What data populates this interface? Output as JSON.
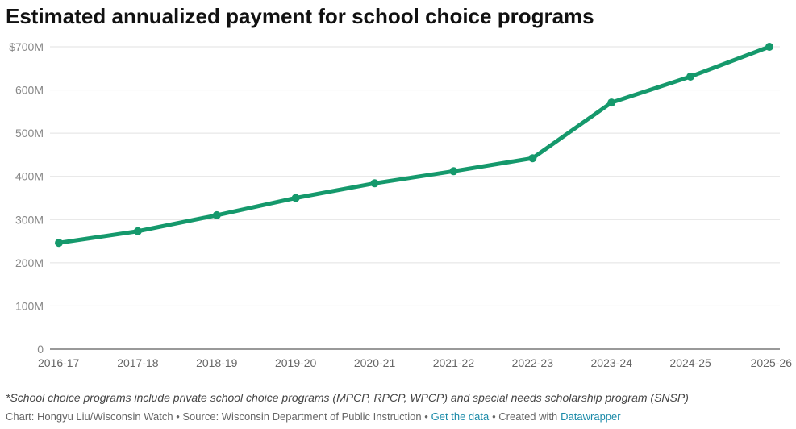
{
  "chart_data": {
    "type": "line",
    "title": "Estimated annualized payment for school choice programs",
    "categories": [
      "2016-17",
      "2017-18",
      "2018-19",
      "2019-20",
      "2020-21",
      "2021-22",
      "2022-23",
      "2023-24",
      "2024-25",
      "2025-26"
    ],
    "values": [
      246,
      273,
      310,
      350,
      384,
      412,
      442,
      571,
      631,
      700
    ],
    "color": "#15996c",
    "ylim": [
      0,
      700
    ],
    "yticks": [
      0,
      {
        "value": 100,
        "label": "100M"
      },
      {
        "value": 200,
        "label": "200M"
      },
      {
        "value": 300,
        "label": "300M"
      },
      {
        "value": 400,
        "label": "400M"
      },
      {
        "value": 500,
        "label": "500M"
      },
      {
        "value": 600,
        "label": "600M"
      },
      {
        "value": 700,
        "label": "$700M"
      }
    ],
    "grid": true,
    "note": "*School choice programs include private school choice programs (MPCP, RPCP, WPCP) and special needs scholarship program (SNSP)",
    "credit": "Chart: Hongyu Liu/Wisconsin Watch • Source: Wisconsin Department of Public Instruction •",
    "data_link": "Get the data",
    "created": "• Created with",
    "tool_link": "Datawrapper"
  }
}
